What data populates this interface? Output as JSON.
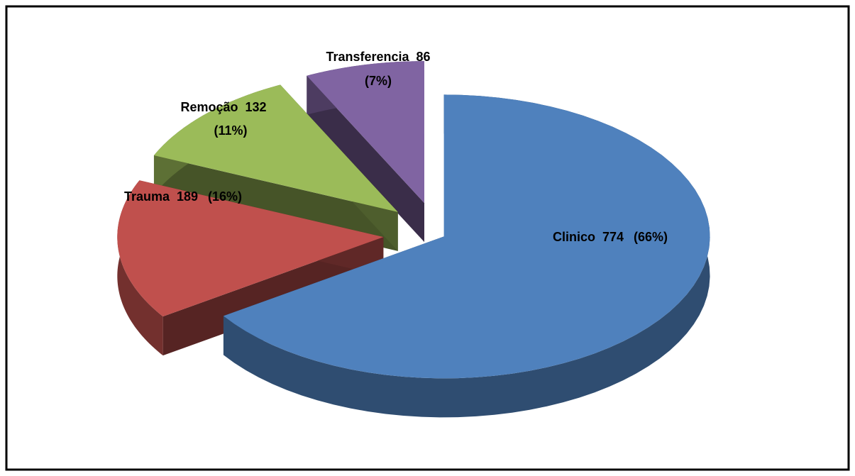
{
  "chart_data": {
    "type": "pie3d",
    "categories": [
      "Clinico",
      "Trauma",
      "Remoção",
      "Transferencia"
    ],
    "values": [
      774,
      189,
      132,
      86
    ],
    "percents": [
      66,
      16,
      11,
      7
    ],
    "percent_labels": [
      "(66%)",
      "(16%)",
      "(11%)",
      "(7%)"
    ],
    "colors": [
      "#4f81bd",
      "#c0504d",
      "#9bbb59",
      "#8064a2"
    ]
  }
}
